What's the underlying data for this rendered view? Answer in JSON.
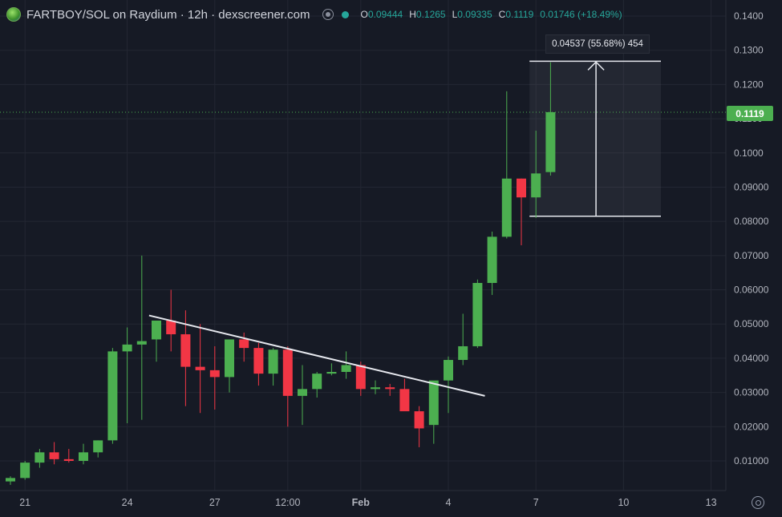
{
  "header": {
    "title": "FARTBOY/SOL on Raydium · 12h · dexscreener.com",
    "ohlc": [
      {
        "k": "O",
        "v": "0.09444"
      },
      {
        "k": "H",
        "v": "0.1265"
      },
      {
        "k": "L",
        "v": "0.09335"
      },
      {
        "k": "C",
        "v": "0.1119"
      }
    ],
    "change": "0.01746 (+18.49%)"
  },
  "measure_label": "0.04537 (55.68%) 454",
  "last_price": "0.1119",
  "colors": {
    "up": "#4caf50",
    "down": "#f23645",
    "bg": "#161a25",
    "grid": "#232733",
    "axis_text": "#b2b5be"
  },
  "chart_data": {
    "type": "candlestick",
    "interval": "12h",
    "y_ticks": [
      "0.1400",
      "0.1300",
      "0.1200",
      "0.1100",
      "0.1000",
      "0.09000",
      "0.08000",
      "0.07000",
      "0.06000",
      "0.05000",
      "0.04000",
      "0.03000",
      "0.02000",
      "0.01000"
    ],
    "x_ticks": [
      {
        "label": "21",
        "i": 1
      },
      {
        "label": "24",
        "i": 8
      },
      {
        "label": "27",
        "i": 14
      },
      {
        "label": "12:00",
        "i": 19
      },
      {
        "label": "Feb",
        "i": 24
      },
      {
        "label": "4",
        "i": 30
      },
      {
        "label": "7",
        "i": 36
      },
      {
        "label": "10",
        "i": 42
      },
      {
        "label": "13",
        "i": 48
      }
    ],
    "ylim": [
      0.0,
      0.145
    ],
    "candles": [
      {
        "o": 0.004,
        "h": 0.0055,
        "l": 0.003,
        "c": 0.005
      },
      {
        "o": 0.005,
        "h": 0.01,
        "l": 0.0045,
        "c": 0.0095
      },
      {
        "o": 0.0095,
        "h": 0.0135,
        "l": 0.008,
        "c": 0.0125
      },
      {
        "o": 0.0125,
        "h": 0.0155,
        "l": 0.009,
        "c": 0.0105
      },
      {
        "o": 0.0105,
        "h": 0.0135,
        "l": 0.0095,
        "c": 0.01
      },
      {
        "o": 0.01,
        "h": 0.015,
        "l": 0.009,
        "c": 0.0125
      },
      {
        "o": 0.0125,
        "h": 0.016,
        "l": 0.011,
        "c": 0.016
      },
      {
        "o": 0.016,
        "h": 0.043,
        "l": 0.015,
        "c": 0.042
      },
      {
        "o": 0.042,
        "h": 0.049,
        "l": 0.021,
        "c": 0.044
      },
      {
        "o": 0.044,
        "h": 0.07,
        "l": 0.022,
        "c": 0.045
      },
      {
        "o": 0.0455,
        "h": 0.051,
        "l": 0.039,
        "c": 0.051
      },
      {
        "o": 0.051,
        "h": 0.06,
        "l": 0.042,
        "c": 0.047
      },
      {
        "o": 0.047,
        "h": 0.054,
        "l": 0.026,
        "c": 0.0375
      },
      {
        "o": 0.0375,
        "h": 0.05,
        "l": 0.024,
        "c": 0.0365
      },
      {
        "o": 0.0365,
        "h": 0.0435,
        "l": 0.025,
        "c": 0.0345
      },
      {
        "o": 0.0345,
        "h": 0.0455,
        "l": 0.03,
        "c": 0.0455
      },
      {
        "o": 0.0455,
        "h": 0.0475,
        "l": 0.039,
        "c": 0.043
      },
      {
        "o": 0.043,
        "h": 0.0445,
        "l": 0.032,
        "c": 0.0355
      },
      {
        "o": 0.0355,
        "h": 0.043,
        "l": 0.032,
        "c": 0.0425
      },
      {
        "o": 0.0425,
        "h": 0.0435,
        "l": 0.02,
        "c": 0.029
      },
      {
        "o": 0.029,
        "h": 0.038,
        "l": 0.0205,
        "c": 0.031
      },
      {
        "o": 0.031,
        "h": 0.036,
        "l": 0.0285,
        "c": 0.0355
      },
      {
        "o": 0.0355,
        "h": 0.0385,
        "l": 0.035,
        "c": 0.036
      },
      {
        "o": 0.036,
        "h": 0.042,
        "l": 0.034,
        "c": 0.038
      },
      {
        "o": 0.038,
        "h": 0.039,
        "l": 0.029,
        "c": 0.031
      },
      {
        "o": 0.031,
        "h": 0.0335,
        "l": 0.0295,
        "c": 0.0315
      },
      {
        "o": 0.0315,
        "h": 0.0325,
        "l": 0.029,
        "c": 0.031
      },
      {
        "o": 0.031,
        "h": 0.034,
        "l": 0.025,
        "c": 0.0245
      },
      {
        "o": 0.0245,
        "h": 0.026,
        "l": 0.014,
        "c": 0.0195
      },
      {
        "o": 0.0205,
        "h": 0.033,
        "l": 0.015,
        "c": 0.0335
      },
      {
        "o": 0.0335,
        "h": 0.0405,
        "l": 0.024,
        "c": 0.0395
      },
      {
        "o": 0.0395,
        "h": 0.053,
        "l": 0.038,
        "c": 0.0435
      },
      {
        "o": 0.0435,
        "h": 0.063,
        "l": 0.043,
        "c": 0.062
      },
      {
        "o": 0.062,
        "h": 0.077,
        "l": 0.0585,
        "c": 0.0755
      },
      {
        "o": 0.0755,
        "h": 0.118,
        "l": 0.075,
        "c": 0.0925
      },
      {
        "o": 0.0925,
        "h": 0.0925,
        "l": 0.073,
        "c": 0.087
      },
      {
        "o": 0.087,
        "h": 0.1065,
        "l": 0.081,
        "c": 0.094
      },
      {
        "o": 0.0944,
        "h": 0.1265,
        "l": 0.0934,
        "c": 0.1119
      }
    ],
    "trendline": [
      {
        "i": 9.5,
        "p": 0.0525
      },
      {
        "i": 32.5,
        "p": 0.029
      }
    ],
    "measure": {
      "i0": 36,
      "i1": 45,
      "p0": 0.0815,
      "p1": 0.1268
    }
  }
}
